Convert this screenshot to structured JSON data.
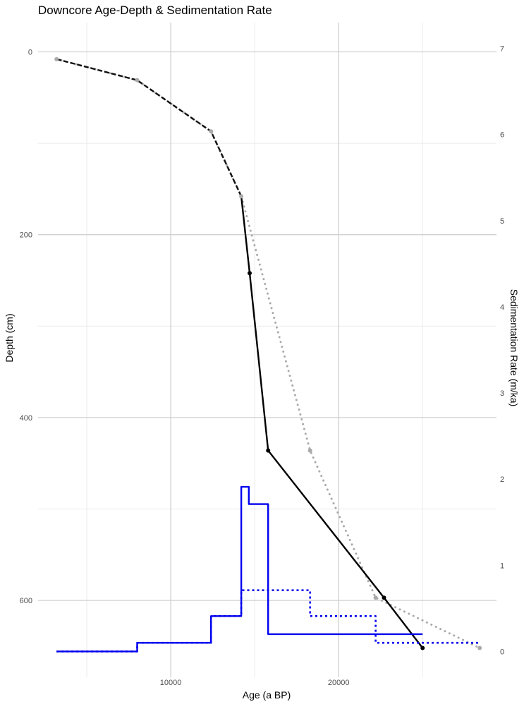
{
  "chart_data": {
    "type": "line",
    "title": "Downcore Age-Depth & Sedimentation Rate",
    "xlabel": "Age (a BP)",
    "ylabel": "Depth (cm)",
    "y2label": "Sedimentation Rate (m/ka)",
    "xlim": [
      2100,
      29400
    ],
    "ylim_depth_reversed": [
      -32,
      684
    ],
    "y2lim": [
      -0.3,
      7.3
    ],
    "x_ticks": [
      10000,
      20000
    ],
    "x_minor_ticks": [
      5000,
      15000,
      25000
    ],
    "y_ticks": [
      0,
      200,
      400,
      600
    ],
    "y_minor_ticks": [
      100,
      300,
      500
    ],
    "y2_ticks": [
      0,
      1,
      2,
      3,
      4,
      5,
      6,
      7
    ],
    "grid": true,
    "series": [
      {
        "style": "grey-dotted",
        "color": "#aaaaaa",
        "points": [
          [
            3200,
            8
          ],
          [
            8000,
            31
          ],
          [
            12400,
            87
          ],
          [
            14200,
            158
          ],
          [
            18300,
            436
          ],
          [
            22200,
            597
          ],
          [
            28400,
            652
          ]
        ]
      },
      {
        "style": "black-dashed",
        "color": "#111111",
        "points": [
          [
            3200,
            8
          ],
          [
            8000,
            31
          ],
          [
            12400,
            87
          ],
          [
            14200,
            158
          ]
        ]
      },
      {
        "style": "black-solid",
        "color": "#000000",
        "points": [
          [
            14200,
            158
          ],
          [
            14700,
            242
          ],
          [
            15800,
            436
          ],
          [
            22700,
            597
          ],
          [
            25000,
            652
          ]
        ]
      },
      {
        "style": "blue-solid-step",
        "color": "#0000ee",
        "axis": "y2",
        "points": [
          [
            3200,
            0.0
          ],
          [
            8000,
            0.0
          ],
          [
            8000,
            0.1
          ],
          [
            12400,
            0.1
          ],
          [
            12400,
            0.41
          ],
          [
            14200,
            0.41
          ],
          [
            14200,
            1.91
          ],
          [
            14650,
            1.91
          ],
          [
            14650,
            1.71
          ],
          [
            15800,
            1.71
          ],
          [
            15800,
            0.2
          ],
          [
            25000,
            0.2
          ]
        ]
      },
      {
        "style": "blue-dotted-step",
        "color": "#0000ee",
        "axis": "y2",
        "points": [
          [
            3200,
            0.0
          ],
          [
            8000,
            0.0
          ],
          [
            8000,
            0.1
          ],
          [
            12400,
            0.1
          ],
          [
            12400,
            0.41
          ],
          [
            14200,
            0.41
          ],
          [
            14200,
            0.71
          ],
          [
            18300,
            0.71
          ],
          [
            18300,
            0.41
          ],
          [
            22200,
            0.41
          ],
          [
            22200,
            0.1
          ],
          [
            28400,
            0.1
          ]
        ]
      }
    ]
  }
}
